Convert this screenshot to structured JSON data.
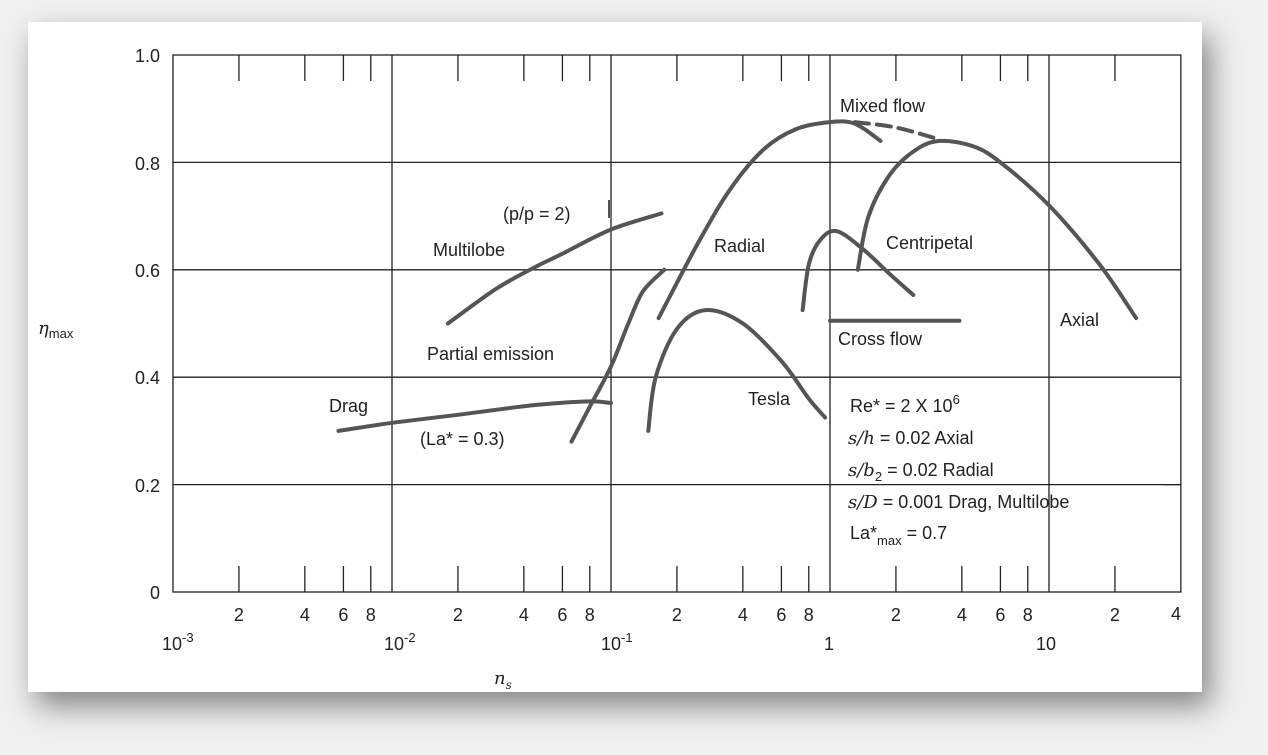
{
  "chart_data": {
    "type": "line",
    "xlabel": "n",
    "xlabel_sub": "s",
    "ylabel": "η",
    "ylabel_sub": "max",
    "xscale": "log",
    "xlim": [
      0.001,
      40
    ],
    "ylim": [
      0,
      1.0
    ],
    "grid": true,
    "y_ticks": [
      "0",
      "0.2",
      "0.4",
      "0.6",
      "0.8",
      "1.0"
    ],
    "x_decade_labels": [
      {
        "base": "10",
        "exp": "-3"
      },
      {
        "base": "10",
        "exp": "-2"
      },
      {
        "base": "10",
        "exp": "-1"
      },
      {
        "base": "1",
        "exp": ""
      },
      {
        "base": "10",
        "exp": ""
      }
    ],
    "x_minor_labels": [
      "2",
      "4",
      "6",
      "8"
    ],
    "x_last_label": "4",
    "series": [
      {
        "name": "Drag",
        "style": "solid",
        "points": [
          [
            0.0057,
            0.3
          ],
          [
            0.01,
            0.315
          ],
          [
            0.02,
            0.33
          ],
          [
            0.035,
            0.343
          ],
          [
            0.05,
            0.35
          ],
          [
            0.08,
            0.355
          ],
          [
            0.1,
            0.352
          ]
        ]
      },
      {
        "name": "Multilobe",
        "style": "solid",
        "points": [
          [
            0.018,
            0.5
          ],
          [
            0.03,
            0.565
          ],
          [
            0.045,
            0.605
          ],
          [
            0.06,
            0.63
          ],
          [
            0.1,
            0.675
          ],
          [
            0.17,
            0.705
          ]
        ]
      },
      {
        "name": "Partial emission",
        "style": "solid",
        "points": [
          [
            0.066,
            0.28
          ],
          [
            0.08,
            0.345
          ],
          [
            0.1,
            0.42
          ],
          [
            0.12,
            0.5
          ],
          [
            0.14,
            0.56
          ],
          [
            0.175,
            0.6
          ]
        ]
      },
      {
        "name": "Radial / Mixed flow",
        "style": "solid",
        "points": [
          [
            0.165,
            0.51
          ],
          [
            0.25,
            0.65
          ],
          [
            0.35,
            0.75
          ],
          [
            0.5,
            0.825
          ],
          [
            0.7,
            0.862
          ],
          [
            1.0,
            0.875
          ],
          [
            1.3,
            0.872
          ],
          [
            1.7,
            0.84
          ]
        ]
      },
      {
        "name": "Mixed flow (dashed)",
        "style": "dashed",
        "points": [
          [
            1.3,
            0.875
          ],
          [
            2.0,
            0.865
          ],
          [
            3.2,
            0.842
          ]
        ]
      },
      {
        "name": "Axial",
        "style": "solid",
        "points": [
          [
            1.34,
            0.6
          ],
          [
            1.5,
            0.7
          ],
          [
            1.9,
            0.78
          ],
          [
            2.5,
            0.825
          ],
          [
            3.2,
            0.84
          ],
          [
            4.5,
            0.83
          ],
          [
            6,
            0.8
          ],
          [
            10,
            0.72
          ],
          [
            17,
            0.61
          ],
          [
            25,
            0.51
          ]
        ]
      },
      {
        "name": "Centripetal",
        "style": "solid",
        "points": [
          [
            0.75,
            0.525
          ],
          [
            0.8,
            0.61
          ],
          [
            0.9,
            0.655
          ],
          [
            1.07,
            0.672
          ],
          [
            1.4,
            0.64
          ],
          [
            1.9,
            0.59
          ],
          [
            2.4,
            0.553
          ]
        ]
      },
      {
        "name": "Tesla",
        "style": "solid",
        "points": [
          [
            0.148,
            0.3
          ],
          [
            0.16,
            0.4
          ],
          [
            0.2,
            0.49
          ],
          [
            0.27,
            0.525
          ],
          [
            0.4,
            0.5
          ],
          [
            0.6,
            0.43
          ],
          [
            0.8,
            0.36
          ],
          [
            0.95,
            0.325
          ]
        ]
      },
      {
        "name": "Cross flow",
        "style": "solid",
        "points": [
          [
            1.0,
            0.505
          ],
          [
            3.9,
            0.505
          ]
        ]
      }
    ],
    "annotations": {
      "mixed_flow": "Mixed flow",
      "pp": "(p/p = 2)",
      "multilobe": "Multilobe",
      "radial": "Radial",
      "centripetal": "Centripetal",
      "partial_emission": "Partial emission",
      "cross_flow": "Cross flow",
      "axial": "Axial",
      "drag": "Drag",
      "tesla": "Tesla",
      "la": "(La* = 0.3)"
    },
    "conditions": {
      "re": {
        "text": "Re* = 2 X 10",
        "sup": "6"
      },
      "sh": {
        "var": "s/h",
        "text": " = 0.02 Axial"
      },
      "sb": {
        "var": "s/b",
        "sub": "2",
        "text": " = 0.02 Radial"
      },
      "sd": {
        "var": "s/D",
        "text": " = 0.001 Drag, Multilobe"
      },
      "la": {
        "text": "La*",
        "sub": "max",
        "rest": " = 0.7"
      }
    }
  }
}
